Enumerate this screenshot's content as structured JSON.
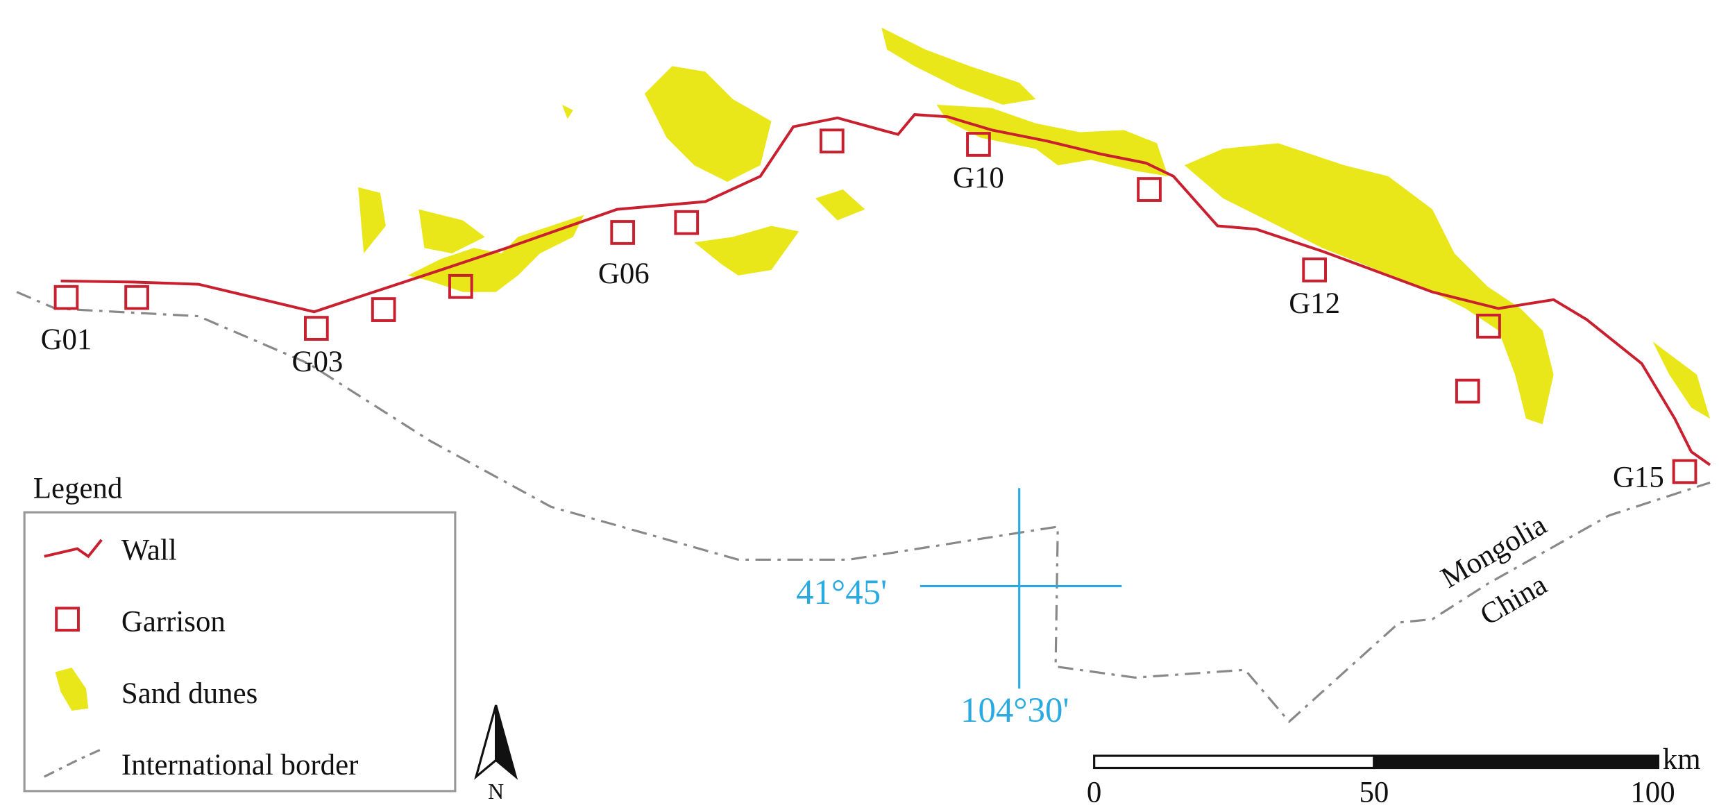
{
  "legend": {
    "title": "Legend",
    "items": [
      "Wall",
      "Garrison",
      "Sand dunes",
      "International border"
    ]
  },
  "garrisons": [
    "G01",
    "G03",
    "G06",
    "G10",
    "G12",
    "G15"
  ],
  "coordinates": {
    "latitude": "41°45'",
    "longitude": "104°30'"
  },
  "countries": [
    "Mongolia",
    "China"
  ],
  "scale": {
    "ticks": [
      0,
      50,
      100
    ],
    "unit": "km"
  },
  "north": "N"
}
